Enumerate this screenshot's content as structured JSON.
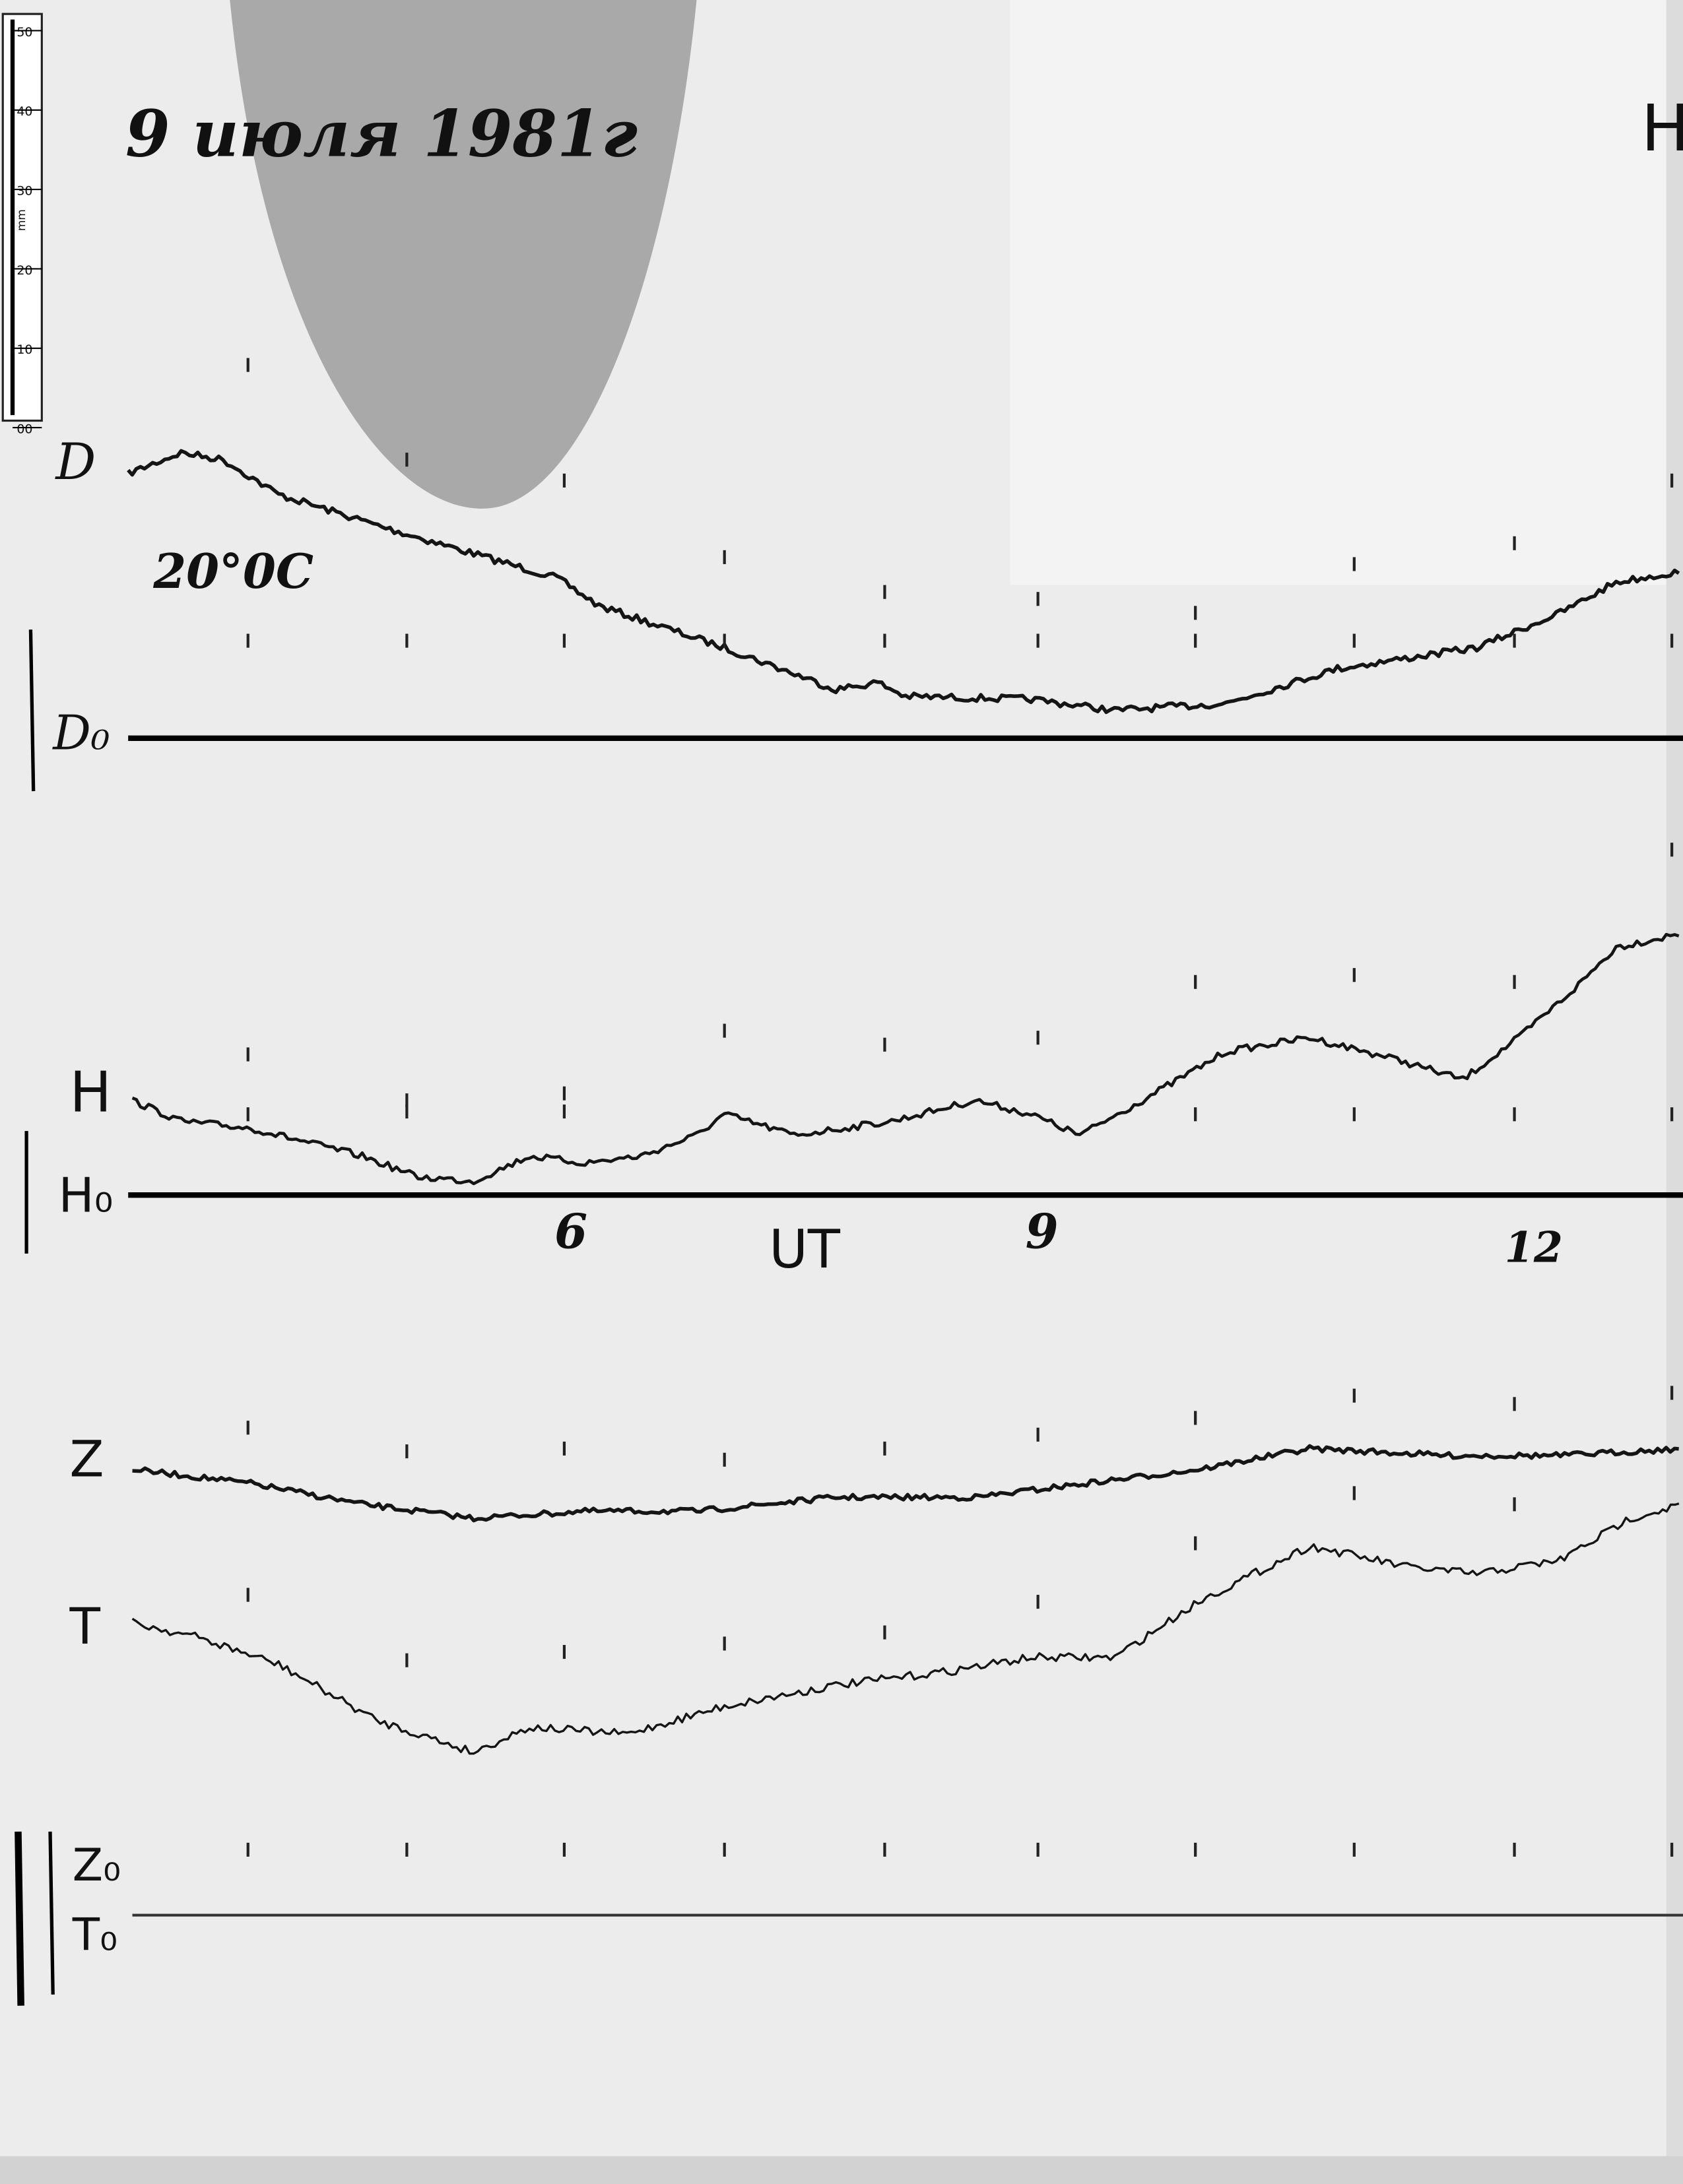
{
  "header": {
    "date": "9 июля 1981г",
    "station": "H"
  },
  "scale": {
    "unit": "mm",
    "ticks": [
      "50",
      "40",
      "30",
      "20",
      "10",
      "00"
    ]
  },
  "traces": {
    "d": {
      "label": "D",
      "baseline": "D₀",
      "temperature": "20°0C"
    },
    "h": {
      "label": "H",
      "baseline": "H₀"
    },
    "z": {
      "label": "Z",
      "baseline": "Z₀"
    },
    "t": {
      "label": "T",
      "baseline": "T₀"
    }
  },
  "time_axis": {
    "label": "UT",
    "hours": [
      "6",
      "9",
      "12"
    ]
  }
}
